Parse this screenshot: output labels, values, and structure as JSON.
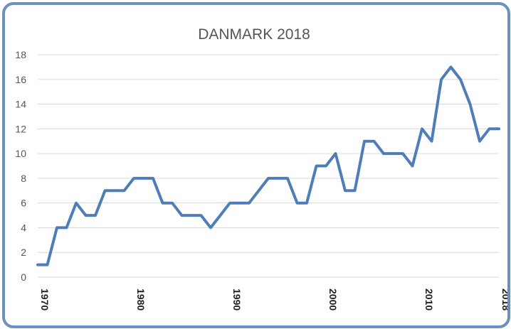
{
  "chart_data": {
    "type": "line",
    "title": "DANMARK 2018",
    "xlabel": "",
    "ylabel": "",
    "xlim": [
      1970,
      2018
    ],
    "ylim": [
      0,
      18
    ],
    "yticks": [
      0,
      2,
      4,
      6,
      8,
      10,
      12,
      14,
      16,
      18
    ],
    "xtick_labels": [
      "1970",
      "1980",
      "1990",
      "2000",
      "2010",
      "2018"
    ],
    "grid": true,
    "legend": "none",
    "color": "#4f7db8",
    "series": [
      {
        "x": [
          1970,
          1971,
          1972,
          1973,
          1974,
          1975,
          1976,
          1977,
          1978,
          1979,
          1980,
          1981,
          1982,
          1983,
          1984,
          1985,
          1986,
          1987,
          1988,
          1989,
          1990,
          1991,
          1992,
          1993,
          1994,
          1995,
          1996,
          1997,
          1998,
          1999,
          2000,
          2001,
          2002,
          2003,
          2004,
          2005,
          2006,
          2007,
          2008,
          2009,
          2010,
          2011,
          2012,
          2013,
          2014,
          2015,
          2016,
          2017,
          2018
        ],
        "values": [
          1,
          1,
          4,
          4,
          6,
          5,
          5,
          7,
          7,
          7,
          8,
          8,
          8,
          6,
          6,
          5,
          5,
          5,
          4,
          5,
          6,
          6,
          6,
          7,
          8,
          8,
          8,
          6,
          6,
          9,
          9,
          10,
          7,
          7,
          11,
          11,
          10,
          10,
          10,
          9,
          12,
          11,
          16,
          17,
          16,
          14,
          11,
          12,
          12
        ]
      }
    ]
  }
}
